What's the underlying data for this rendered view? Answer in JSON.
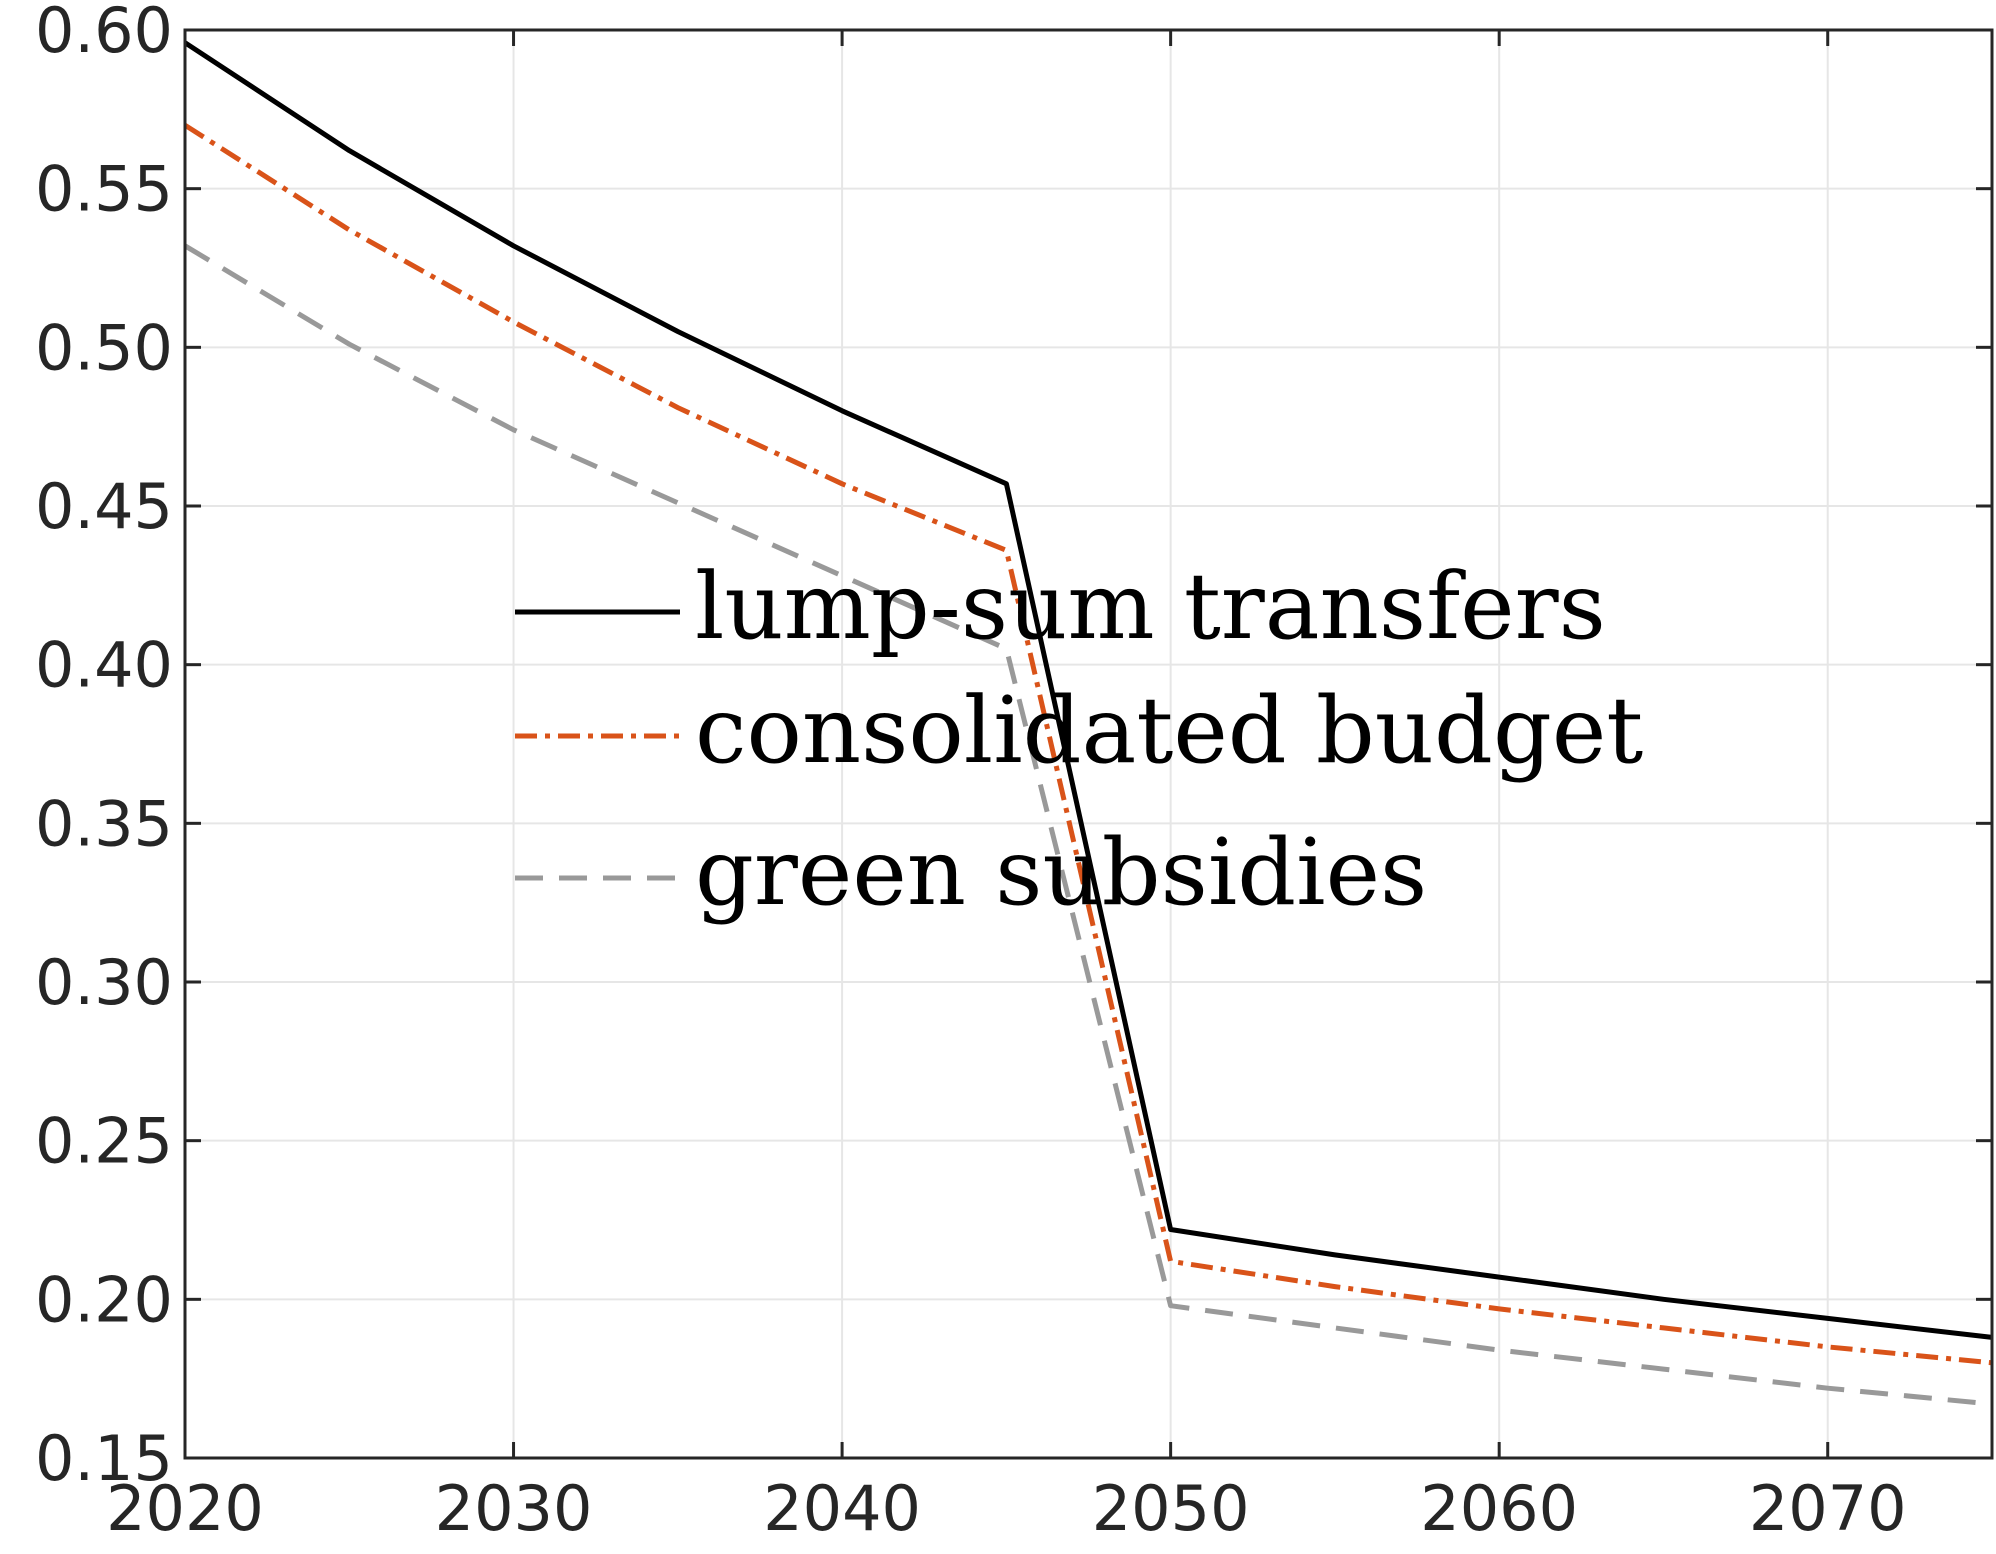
{
  "chart_data": {
    "type": "line",
    "title": "",
    "xlabel": "",
    "ylabel": "",
    "xlim": [
      2020,
      2075
    ],
    "ylim": [
      0.15,
      0.6
    ],
    "grid": true,
    "legend_position": "center",
    "x": [
      2020,
      2025,
      2030,
      2035,
      2040,
      2045,
      2050,
      2055,
      2060,
      2065,
      2070,
      2075
    ],
    "series": [
      {
        "name": "lump-sum transfers",
        "color": "#000000",
        "dash": "solid",
        "values": [
          0.596,
          0.562,
          0.532,
          0.505,
          0.48,
          0.457,
          0.222,
          0.214,
          0.207,
          0.2,
          0.194,
          0.188
        ]
      },
      {
        "name": "consolidated budget",
        "color": "#D95319",
        "dash": "dashdot",
        "values": [
          0.57,
          0.537,
          0.508,
          0.481,
          0.457,
          0.436,
          0.212,
          0.204,
          0.197,
          0.191,
          0.185,
          0.18
        ]
      },
      {
        "name": "green subsidies",
        "color": "#999999",
        "dash": "dashed",
        "values": [
          0.532,
          0.501,
          0.474,
          0.451,
          0.428,
          0.405,
          0.198,
          0.191,
          0.184,
          0.178,
          0.172,
          0.167
        ]
      }
    ],
    "x_ticks": [
      2020,
      2030,
      2040,
      2050,
      2060,
      2070
    ],
    "x_tick_labels": [
      "2020",
      "2030",
      "2040",
      "2050",
      "2060",
      "2070"
    ],
    "y_ticks": [
      0.15,
      0.2,
      0.25,
      0.3,
      0.35,
      0.4,
      0.45,
      0.5,
      0.55,
      0.6
    ],
    "y_tick_labels": [
      "0.15",
      "0.20",
      "0.25",
      "0.30",
      "0.35",
      "0.40",
      "0.45",
      "0.50",
      "0.55",
      "0.60"
    ]
  }
}
